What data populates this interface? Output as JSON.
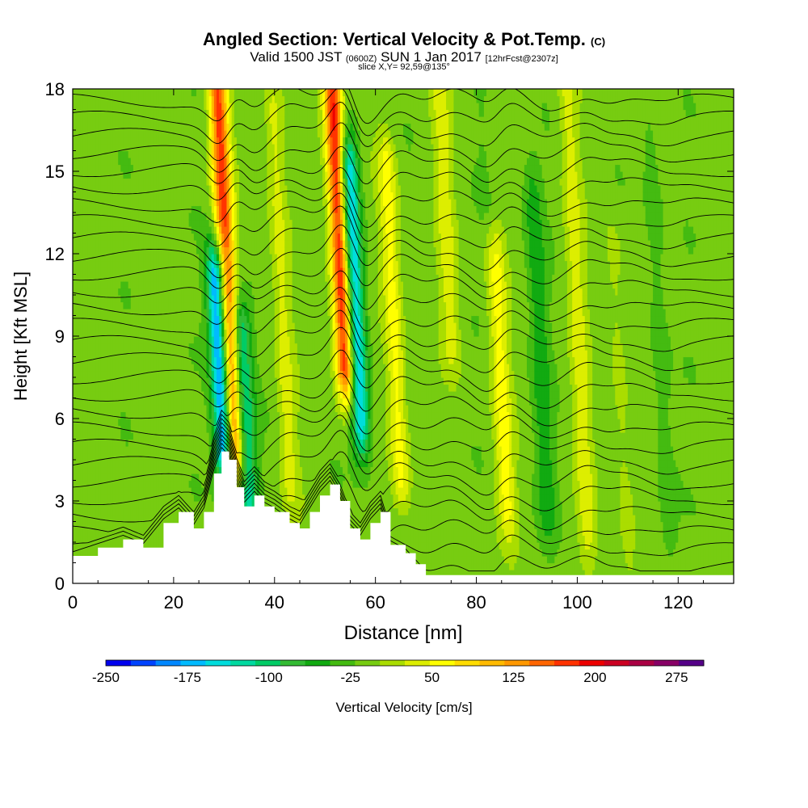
{
  "header": {
    "title": "Angled Section: Vertical Velocity & Pot.Temp.",
    "title_unit": "(C)",
    "valid_main": "Valid 1500 JST",
    "valid_z": "(0600Z)",
    "valid_date": "SUN 1 Jan 2017",
    "forecast": "[12hrFcst@2307z]",
    "slice": "slice X,Y= 92,59@135°"
  },
  "chart_data": {
    "type": "heatmap",
    "title": "Angled Section: Vertical Velocity & Pot.Temp.",
    "xlabel": "Distance [nm]",
    "ylabel": "Height [Kft MSL]",
    "xlim": [
      0,
      131
    ],
    "ylim": [
      0,
      18
    ],
    "x_ticks": [
      0,
      20,
      40,
      60,
      80,
      100,
      120
    ],
    "y_ticks": [
      0,
      3,
      6,
      9,
      12,
      15,
      18
    ],
    "colorbar": {
      "label": "Vertical Velocity [cm/s]",
      "min": -250,
      "max": 300,
      "step": 25,
      "tick_labels": [
        -250,
        -175,
        -100,
        -25,
        50,
        125,
        200,
        275
      ],
      "colors": [
        "#0000ee",
        "#0044ff",
        "#0088ff",
        "#00bbff",
        "#00dddd",
        "#00d9a0",
        "#00cc66",
        "#33bb33",
        "#11aa11",
        "#44bb11",
        "#77cc11",
        "#aadd00",
        "#ddee00",
        "#ffff00",
        "#ffdd00",
        "#ffbb00",
        "#ff9900",
        "#ff6600",
        "#ff3300",
        "#ee0000",
        "#cc0022",
        "#aa0044",
        "#880066",
        "#550088"
      ]
    },
    "terrain_kft": [
      [
        0,
        1.0
      ],
      [
        5,
        1.3
      ],
      [
        10,
        1.6
      ],
      [
        14,
        1.3
      ],
      [
        18,
        2.2
      ],
      [
        21,
        2.6
      ],
      [
        24,
        2.0
      ],
      [
        26,
        2.6
      ],
      [
        28,
        4.0
      ],
      [
        29.5,
        4.8
      ],
      [
        31,
        4.5
      ],
      [
        32.5,
        3.5
      ],
      [
        34,
        2.8
      ],
      [
        36,
        3.2
      ],
      [
        38,
        2.8
      ],
      [
        40,
        2.6
      ],
      [
        43,
        2.2
      ],
      [
        45,
        2.0
      ],
      [
        47,
        2.6
      ],
      [
        49,
        3.2
      ],
      [
        51,
        3.6
      ],
      [
        53,
        3.0
      ],
      [
        55,
        2.0
      ],
      [
        57,
        1.6
      ],
      [
        59,
        2.2
      ],
      [
        61,
        2.6
      ],
      [
        63,
        1.4
      ],
      [
        66,
        1.1
      ],
      [
        68,
        0.7
      ],
      [
        70,
        0.3
      ],
      [
        131,
        0.3
      ]
    ],
    "updraft_bands": [
      {
        "x": 32,
        "peak_cm_s": 200,
        "top_kft": 18,
        "bottom_kft": 5
      },
      {
        "x": 54,
        "peak_cm_s": 225,
        "top_kft": 18,
        "bottom_kft": 8
      },
      {
        "x": 43,
        "peak_cm_s": 50,
        "top_kft": 17,
        "bottom_kft": 4
      },
      {
        "x": 65,
        "peak_cm_s": 75,
        "top_kft": 15,
        "bottom_kft": 4
      },
      {
        "x": 75,
        "peak_cm_s": 50,
        "top_kft": 18,
        "bottom_kft": 9
      },
      {
        "x": 86,
        "peak_cm_s": 75,
        "top_kft": 18,
        "bottom_kft": 3
      },
      {
        "x": 102,
        "peak_cm_s": 50,
        "top_kft": 18,
        "bottom_kft": 2
      },
      {
        "x": 110,
        "peak_cm_s": 25,
        "top_kft": 12,
        "bottom_kft": 1
      }
    ],
    "downdraft_bands": [
      {
        "x": 30,
        "peak_cm_s": -225,
        "top_kft": 11,
        "bottom_kft": 5
      },
      {
        "x": 35,
        "peak_cm_s": -125,
        "top_kft": 9,
        "bottom_kft": 3
      },
      {
        "x": 57,
        "peak_cm_s": -175,
        "top_kft": 15,
        "bottom_kft": 6
      },
      {
        "x": 83,
        "peak_cm_s": -75,
        "top_kft": 18,
        "bottom_kft": 14
      },
      {
        "x": 94,
        "peak_cm_s": -50,
        "top_kft": 14,
        "bottom_kft": 3
      },
      {
        "x": 118,
        "peak_cm_s": -25,
        "top_kft": 16,
        "bottom_kft": 2
      }
    ],
    "contours": {
      "variable": "Potential Temperature",
      "unit": "C",
      "interval": 1,
      "count": 28
    }
  }
}
